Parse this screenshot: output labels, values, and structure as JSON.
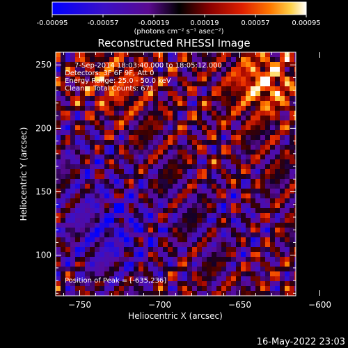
{
  "chart_data": {
    "type": "heatmap",
    "title": "Reconstructed RHESSI Image",
    "xlabel": "Heliocentric X (arcsec)",
    "ylabel": "Heliocentric Y (arcsec)",
    "xlim": [
      -765,
      -615
    ],
    "ylim": [
      68,
      260
    ],
    "x_ticks": [
      -750,
      -700,
      -650,
      -600
    ],
    "y_ticks": [
      100,
      150,
      200,
      250
    ],
    "colorbar": {
      "min": -0.00095,
      "max": 0.00095,
      "ticks": [
        "-0.00095",
        "-0.00057",
        "-0.00019",
        "0.00019",
        "0.00057",
        "0.00095"
      ],
      "unit_label": "(photons cm⁻² s⁻¹ asec⁻²)",
      "colors": [
        "#0000ff",
        "#3a10c8",
        "#6a0aa0",
        "#000000",
        "#8a0000",
        "#e02000",
        "#ff7a00",
        "#ffd24a",
        "#ffffff"
      ]
    },
    "annotations": {
      "time_range": "7-Sep-2014 18:03:40.000 to 18:05:12.000",
      "detectors": "Detectors: 3F 6F 9F, Att 0",
      "energy": "Energy Range: 25.0 - 50.0 keV",
      "clean": "Clean    Total Counts: 671.",
      "peak": "Position of Peak = [-635,236]"
    },
    "peak_position": [
      -635,
      236
    ]
  },
  "footer": {
    "timestamp": "16-May-2022 23:03"
  }
}
